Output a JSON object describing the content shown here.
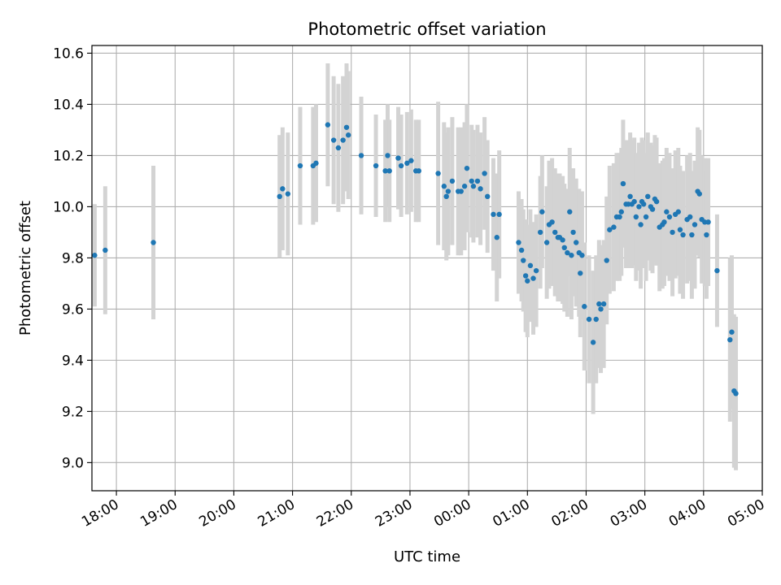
{
  "chart_data": {
    "type": "scatter",
    "title": "Photometric offset variation",
    "xlabel": "UTC time",
    "ylabel": "Photometric offset",
    "x_unit": "UTC hours (times after midnight continue past 24)",
    "xlim": [
      "17:35",
      "05:00"
    ],
    "ylim": [
      8.89,
      10.63
    ],
    "xticks": [
      "18:00",
      "19:00",
      "20:00",
      "21:00",
      "22:00",
      "23:00",
      "00:00",
      "01:00",
      "02:00",
      "03:00",
      "04:00",
      "05:00"
    ],
    "yticks": [
      "9.0",
      "9.2",
      "9.4",
      "9.6",
      "9.8",
      "10.0",
      "10.2",
      "10.4",
      "10.6"
    ],
    "grid": true,
    "colors": {
      "point": "#1f77b4",
      "errorbar": "#d3d3d3",
      "grid": "#b0b0b0"
    },
    "series": [
      {
        "points": [
          [
            17.63,
            9.81,
            0.2
          ],
          [
            17.81,
            9.83,
            0.25
          ],
          [
            18.63,
            9.86,
            0.3
          ],
          [
            20.78,
            10.04,
            0.24
          ],
          [
            20.83,
            10.07,
            0.24
          ],
          [
            20.92,
            10.05,
            0.24
          ],
          [
            21.13,
            10.16,
            0.23
          ],
          [
            21.35,
            10.16,
            0.23
          ],
          [
            21.4,
            10.17,
            0.23
          ],
          [
            21.6,
            10.32,
            0.24
          ],
          [
            21.7,
            10.26,
            0.25
          ],
          [
            21.78,
            10.23,
            0.25
          ],
          [
            21.86,
            10.26,
            0.25
          ],
          [
            21.92,
            10.31,
            0.25
          ],
          [
            21.95,
            10.28,
            0.25
          ],
          [
            22.17,
            10.2,
            0.23
          ],
          [
            22.42,
            10.16,
            0.2
          ],
          [
            22.58,
            10.14,
            0.2
          ],
          [
            22.62,
            10.2,
            0.2
          ],
          [
            22.65,
            10.14,
            0.2
          ],
          [
            22.8,
            10.19,
            0.2
          ],
          [
            22.85,
            10.16,
            0.2
          ],
          [
            22.95,
            10.17,
            0.2
          ],
          [
            23.02,
            10.18,
            0.2
          ],
          [
            23.1,
            10.14,
            0.2
          ],
          [
            23.15,
            10.14,
            0.2
          ],
          [
            23.48,
            10.13,
            0.28
          ],
          [
            23.58,
            10.08,
            0.25
          ],
          [
            23.62,
            10.04,
            0.25
          ],
          [
            23.65,
            10.06,
            0.25
          ],
          [
            23.72,
            10.1,
            0.25
          ],
          [
            23.82,
            10.06,
            0.25
          ],
          [
            23.87,
            10.06,
            0.25
          ],
          [
            23.93,
            10.08,
            0.25
          ],
          [
            23.97,
            10.15,
            0.25
          ],
          [
            24.05,
            10.1,
            0.22
          ],
          [
            24.08,
            10.08,
            0.22
          ],
          [
            24.15,
            10.1,
            0.22
          ],
          [
            24.2,
            10.07,
            0.22
          ],
          [
            24.27,
            10.13,
            0.22
          ],
          [
            24.32,
            10.04,
            0.22
          ],
          [
            24.42,
            9.97,
            0.22
          ],
          [
            24.48,
            9.88,
            0.25
          ],
          [
            24.52,
            9.97,
            0.25
          ],
          [
            24.85,
            9.86,
            0.2
          ],
          [
            24.9,
            9.83,
            0.2
          ],
          [
            24.93,
            9.79,
            0.2
          ],
          [
            24.97,
            9.73,
            0.22
          ],
          [
            25.0,
            9.71,
            0.22
          ],
          [
            25.05,
            9.77,
            0.22
          ],
          [
            25.1,
            9.72,
            0.22
          ],
          [
            25.15,
            9.75,
            0.22
          ],
          [
            25.22,
            9.9,
            0.22
          ],
          [
            25.25,
            9.98,
            0.22
          ],
          [
            25.33,
            9.86,
            0.22
          ],
          [
            25.37,
            9.93,
            0.25
          ],
          [
            25.42,
            9.94,
            0.25
          ],
          [
            25.47,
            9.9,
            0.25
          ],
          [
            25.52,
            9.88,
            0.25
          ],
          [
            25.55,
            9.88,
            0.25
          ],
          [
            25.6,
            9.87,
            0.25
          ],
          [
            25.63,
            9.84,
            0.25
          ],
          [
            25.68,
            9.82,
            0.25
          ],
          [
            25.72,
            9.98,
            0.25
          ],
          [
            25.75,
            9.81,
            0.25
          ],
          [
            25.78,
            9.9,
            0.25
          ],
          [
            25.83,
            9.86,
            0.25
          ],
          [
            25.88,
            9.82,
            0.25
          ],
          [
            25.9,
            9.74,
            0.25
          ],
          [
            25.93,
            9.81,
            0.25
          ],
          [
            25.97,
            9.61,
            0.25
          ],
          [
            26.05,
            9.56,
            0.25
          ],
          [
            26.12,
            9.47,
            0.28
          ],
          [
            26.17,
            9.56,
            0.25
          ],
          [
            26.22,
            9.62,
            0.25
          ],
          [
            26.25,
            9.6,
            0.25
          ],
          [
            26.3,
            9.62,
            0.25
          ],
          [
            26.35,
            9.79,
            0.25
          ],
          [
            26.4,
            9.91,
            0.25
          ],
          [
            26.47,
            9.92,
            0.25
          ],
          [
            26.52,
            9.96,
            0.25
          ],
          [
            26.57,
            9.96,
            0.25
          ],
          [
            26.6,
            9.98,
            0.25
          ],
          [
            26.63,
            10.09,
            0.25
          ],
          [
            26.68,
            10.01,
            0.25
          ],
          [
            26.72,
            10.01,
            0.25
          ],
          [
            26.75,
            10.04,
            0.25
          ],
          [
            26.78,
            10.01,
            0.25
          ],
          [
            26.82,
            10.02,
            0.25
          ],
          [
            26.85,
            9.96,
            0.25
          ],
          [
            26.9,
            10.0,
            0.25
          ],
          [
            26.93,
            9.93,
            0.25
          ],
          [
            26.95,
            10.02,
            0.25
          ],
          [
            26.98,
            10.01,
            0.25
          ],
          [
            27.02,
            9.96,
            0.25
          ],
          [
            27.05,
            10.04,
            0.25
          ],
          [
            27.1,
            10.0,
            0.25
          ],
          [
            27.13,
            9.99,
            0.25
          ],
          [
            27.17,
            10.03,
            0.25
          ],
          [
            27.2,
            10.02,
            0.25
          ],
          [
            27.25,
            9.92,
            0.25
          ],
          [
            27.3,
            9.93,
            0.25
          ],
          [
            27.33,
            9.94,
            0.25
          ],
          [
            27.37,
            9.98,
            0.25
          ],
          [
            27.42,
            9.96,
            0.25
          ],
          [
            27.47,
            9.9,
            0.25
          ],
          [
            27.52,
            9.97,
            0.25
          ],
          [
            27.57,
            9.98,
            0.25
          ],
          [
            27.6,
            9.91,
            0.25
          ],
          [
            27.65,
            9.89,
            0.25
          ],
          [
            27.72,
            9.95,
            0.25
          ],
          [
            27.77,
            9.96,
            0.25
          ],
          [
            27.8,
            9.89,
            0.25
          ],
          [
            27.85,
            9.93,
            0.25
          ],
          [
            27.9,
            10.06,
            0.25
          ],
          [
            27.93,
            10.05,
            0.25
          ],
          [
            27.97,
            9.95,
            0.25
          ],
          [
            28.02,
            9.94,
            0.25
          ],
          [
            28.05,
            9.89,
            0.25
          ],
          [
            28.08,
            9.94,
            0.25
          ],
          [
            28.23,
            9.75,
            0.22
          ],
          [
            28.45,
            9.48,
            0.32
          ],
          [
            28.48,
            9.51,
            0.3
          ],
          [
            28.52,
            9.28,
            0.3
          ],
          [
            28.55,
            9.27,
            0.3
          ]
        ]
      }
    ]
  }
}
